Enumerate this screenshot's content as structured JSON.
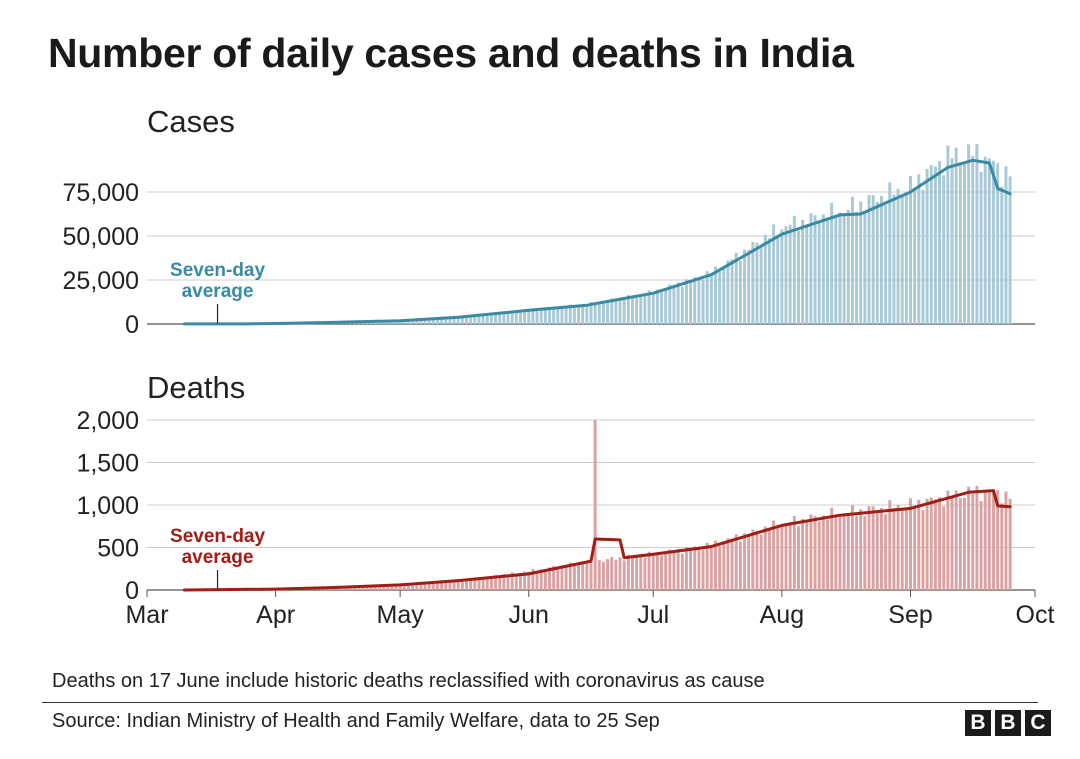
{
  "title": "Number of daily cases and deaths in India",
  "footnote": "Deaths on 17 June include historic deaths reclassified with coronavirus as cause",
  "source": "Source: Indian Ministry of Health and Family Welfare, data to 25 Sep",
  "logo": {
    "letters": [
      "B",
      "B",
      "C"
    ]
  },
  "chart_data": [
    {
      "type": "bar",
      "panel_title": "Cases",
      "color_bars": "#a9c9d6",
      "color_line": "#3a8aa6",
      "ylim": [
        0,
        100000
      ],
      "yticks": [
        0,
        25000,
        50000,
        75000
      ],
      "ytick_labels": [
        "0",
        "25,000",
        "50,000",
        "75,000"
      ],
      "xlim": [
        "2020-03-01",
        "2020-10-01"
      ],
      "annotation": {
        "text_line1": "Seven-day",
        "text_line2": "average",
        "date": "2020-03-18"
      },
      "daily_keypoints": [
        [
          "2020-03-10",
          50
        ],
        [
          "2020-03-25",
          100
        ],
        [
          "2020-04-01",
          400
        ],
        [
          "2020-04-15",
          1000
        ],
        [
          "2020-05-01",
          2000
        ],
        [
          "2020-05-15",
          4000
        ],
        [
          "2020-06-01",
          8000
        ],
        [
          "2020-06-15",
          11000
        ],
        [
          "2020-07-01",
          18000
        ],
        [
          "2020-07-15",
          29000
        ],
        [
          "2020-08-01",
          55000
        ],
        [
          "2020-08-15",
          64000
        ],
        [
          "2020-09-01",
          78000
        ],
        [
          "2020-09-10",
          95000
        ],
        [
          "2020-09-16",
          97000
        ],
        [
          "2020-09-20",
          93000
        ],
        [
          "2020-09-23",
          86000
        ],
        [
          "2020-09-25",
          86000
        ]
      ],
      "series": [
        {
          "name": "Seven-day average",
          "points": [
            [
              "2020-03-10",
              30
            ],
            [
              "2020-03-25",
              80
            ],
            [
              "2020-04-01",
              300
            ],
            [
              "2020-04-15",
              900
            ],
            [
              "2020-05-01",
              1900
            ],
            [
              "2020-05-15",
              3800
            ],
            [
              "2020-06-01",
              7800
            ],
            [
              "2020-06-15",
              10700
            ],
            [
              "2020-07-01",
              17500
            ],
            [
              "2020-07-15",
              28000
            ],
            [
              "2020-08-01",
              51000
            ],
            [
              "2020-08-15",
              62000
            ],
            [
              "2020-08-20",
              62500
            ],
            [
              "2020-09-01",
              75000
            ],
            [
              "2020-09-10",
              89000
            ],
            [
              "2020-09-16",
              93000
            ],
            [
              "2020-09-20",
              91500
            ],
            [
              "2020-09-22",
              77000
            ],
            [
              "2020-09-25",
              74000
            ]
          ]
        }
      ]
    },
    {
      "type": "bar",
      "panel_title": "Deaths",
      "color_bars": "#d9a3a3",
      "color_line": "#a01e16",
      "ylim": [
        0,
        2000
      ],
      "yticks": [
        0,
        500,
        1000,
        1500,
        2000
      ],
      "ytick_labels": [
        "0",
        "500",
        "1,000",
        "1,500",
        "2,000"
      ],
      "xlim": [
        "2020-03-01",
        "2020-10-01"
      ],
      "x_ticks": [
        "Mar",
        "Apr",
        "May",
        "Jun",
        "Jul",
        "Aug",
        "Sep",
        "Oct"
      ],
      "annotation": {
        "text_line1": "Seven-day",
        "text_line2": "average",
        "date": "2020-03-18"
      },
      "spikes": [
        [
          "2020-06-17",
          2003
        ]
      ],
      "daily_keypoints": [
        [
          "2020-03-10",
          0
        ],
        [
          "2020-03-25",
          5
        ],
        [
          "2020-04-15",
          30
        ],
        [
          "2020-05-01",
          70
        ],
        [
          "2020-05-15",
          110
        ],
        [
          "2020-06-01",
          220
        ],
        [
          "2020-06-15",
          330
        ],
        [
          "2020-07-01",
          420
        ],
        [
          "2020-07-15",
          530
        ],
        [
          "2020-08-01",
          780
        ],
        [
          "2020-08-15",
          900
        ],
        [
          "2020-09-01",
          1000
        ],
        [
          "2020-09-15",
          1150
        ],
        [
          "2020-09-21",
          1150
        ],
        [
          "2020-09-25",
          1100
        ]
      ],
      "series": [
        {
          "name": "Seven-day average",
          "points": [
            [
              "2020-03-10",
              0
            ],
            [
              "2020-04-01",
              10
            ],
            [
              "2020-04-15",
              30
            ],
            [
              "2020-05-01",
              60
            ],
            [
              "2020-05-15",
              110
            ],
            [
              "2020-06-01",
              190
            ],
            [
              "2020-06-15",
              330
            ],
            [
              "2020-06-16",
              340
            ],
            [
              "2020-06-17",
              600
            ],
            [
              "2020-06-23",
              590
            ],
            [
              "2020-06-24",
              380
            ],
            [
              "2020-07-01",
              420
            ],
            [
              "2020-07-15",
              510
            ],
            [
              "2020-08-01",
              760
            ],
            [
              "2020-08-15",
              880
            ],
            [
              "2020-09-01",
              960
            ],
            [
              "2020-09-15",
              1150
            ],
            [
              "2020-09-21",
              1170
            ],
            [
              "2020-09-22",
              990
            ],
            [
              "2020-09-25",
              980
            ]
          ]
        }
      ]
    }
  ]
}
